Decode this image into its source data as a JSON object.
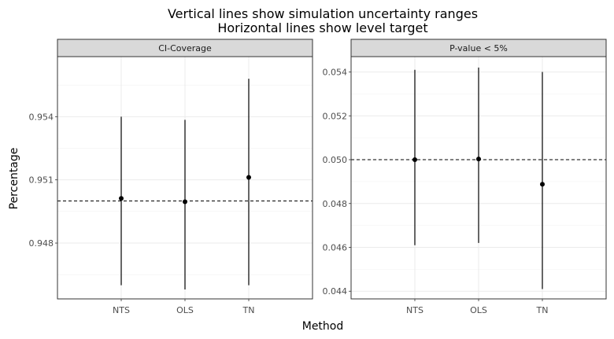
{
  "chart_data": {
    "type": "errorbar",
    "title_line1": "Vertical lines show simulation uncertainty ranges",
    "title_line2": "Horizontal lines show level target",
    "xlabel": "Method",
    "ylabel": "Percentage",
    "grid": true,
    "categories": [
      "NTS",
      "OLS",
      "TN"
    ],
    "panels": [
      {
        "name": "CI-Coverage",
        "ylim": [
          0.94535,
          0.95685
        ],
        "yticks": [
          0.948,
          0.951,
          0.954
        ],
        "ytick_labels": [
          "0.948",
          "0.951",
          "0.954"
        ],
        "target": 0.95,
        "points": [
          {
            "category": "NTS",
            "value": 0.95012,
            "low": 0.946,
            "high": 0.954
          },
          {
            "category": "OLS",
            "value": 0.94996,
            "low": 0.9458,
            "high": 0.95385
          },
          {
            "category": "TN",
            "value": 0.95112,
            "low": 0.946,
            "high": 0.9558
          }
        ]
      },
      {
        "name": "P-value < 5%",
        "ylim": [
          0.04365,
          0.0547
        ],
        "yticks": [
          0.044,
          0.046,
          0.048,
          0.05,
          0.052,
          0.054
        ],
        "ytick_labels": [
          "0.044",
          "0.046",
          "0.048",
          "0.050",
          "0.052",
          "0.054"
        ],
        "target": 0.05,
        "points": [
          {
            "category": "NTS",
            "value": 0.05,
            "low": 0.0461,
            "high": 0.0541
          },
          {
            "category": "OLS",
            "value": 0.05003,
            "low": 0.0462,
            "high": 0.0542
          },
          {
            "category": "TN",
            "value": 0.04888,
            "low": 0.0441,
            "high": 0.054
          }
        ]
      }
    ]
  }
}
